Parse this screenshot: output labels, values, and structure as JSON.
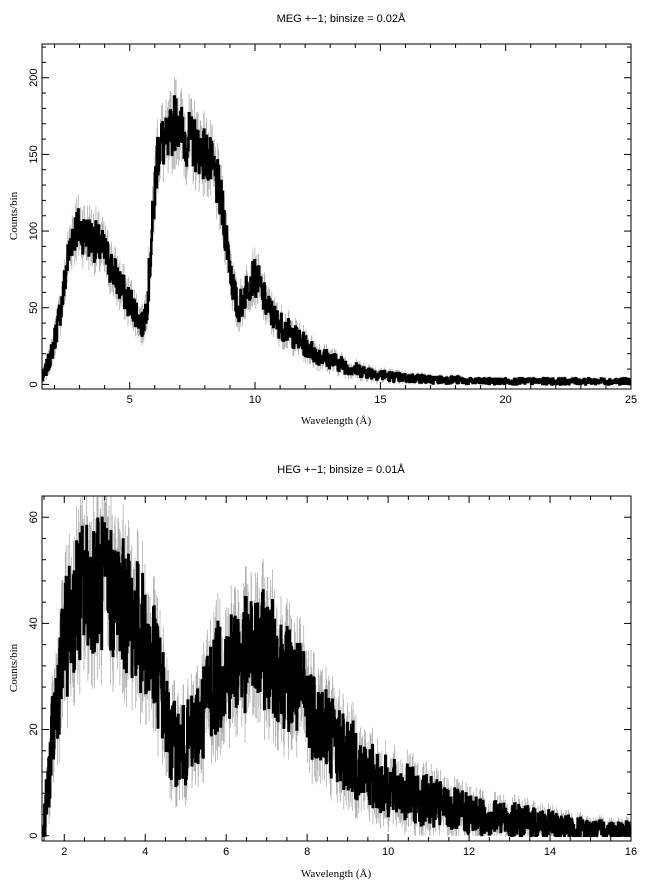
{
  "chart_data": [
    {
      "type": "line",
      "title": "MEG +−1; binsize = 0.02Å",
      "xlabel": "Wavelength (Å)",
      "ylabel": "Counts/bin",
      "xlim": [
        1.5,
        25
      ],
      "ylim": [
        -3,
        222
      ],
      "xticks": [
        5,
        10,
        15,
        20,
        25
      ],
      "yticks": [
        0,
        50,
        100,
        150,
        200
      ],
      "grid": false,
      "series": [
        {
          "style": "black stepped histogram with grey error bars",
          "x": [
            1.5,
            1.7,
            1.9,
            2.1,
            2.3,
            2.5,
            2.7,
            2.9,
            3.1,
            3.3,
            3.5,
            3.7,
            3.9,
            4.1,
            4.3,
            4.5,
            4.7,
            4.9,
            5.1,
            5.3,
            5.5,
            5.7,
            5.9,
            6.1,
            6.3,
            6.5,
            6.7,
            6.9,
            7.1,
            7.3,
            7.5,
            7.7,
            7.9,
            8.1,
            8.3,
            8.5,
            8.7,
            8.9,
            9.1,
            9.3,
            9.5,
            9.7,
            9.9,
            10.1,
            10.3,
            10.5,
            10.7,
            10.9,
            11.2,
            11.5,
            11.8,
            12.1,
            12.4,
            12.7,
            13.0,
            13.3,
            13.6,
            13.9,
            14.2,
            14.5,
            14.8,
            15.1,
            15.5,
            16.0,
            16.5,
            17.0,
            17.5,
            18.0,
            18.5,
            19.0,
            19.5,
            20.0,
            21.0,
            22.0,
            23.0,
            24.0,
            25.0
          ],
          "y": [
            3,
            12,
            22,
            38,
            55,
            80,
            98,
            102,
            100,
            97,
            95,
            92,
            88,
            82,
            75,
            68,
            62,
            55,
            52,
            45,
            38,
            55,
            105,
            152,
            158,
            155,
            168,
            175,
            162,
            160,
            158,
            155,
            152,
            148,
            140,
            130,
            112,
            90,
            65,
            48,
            55,
            65,
            70,
            68,
            58,
            50,
            45,
            40,
            36,
            32,
            28,
            24,
            20,
            18,
            16,
            14,
            12,
            10,
            9,
            8,
            7,
            6,
            5,
            4,
            4,
            3,
            3,
            3,
            2,
            2,
            2,
            2,
            2,
            2,
            2,
            2,
            2
          ]
        }
      ]
    },
    {
      "type": "line",
      "title": "HEG +−1; binsize = 0.01Å",
      "xlabel": "Wavelength (Å)",
      "ylabel": "Counts/bin",
      "xlim": [
        1.45,
        16
      ],
      "ylim": [
        -1,
        64
      ],
      "xticks": [
        2,
        4,
        6,
        8,
        10,
        12,
        14,
        16
      ],
      "yticks": [
        0,
        20,
        40,
        60
      ],
      "grid": false,
      "series": [
        {
          "style": "black stepped histogram with grey error bars",
          "x": [
            1.45,
            1.5,
            1.6,
            1.7,
            1.8,
            2.0,
            2.2,
            2.4,
            2.6,
            2.8,
            3.0,
            3.2,
            3.4,
            3.6,
            3.8,
            4.0,
            4.2,
            4.4,
            4.6,
            4.8,
            5.0,
            5.2,
            5.4,
            5.6,
            5.8,
            6.0,
            6.2,
            6.4,
            6.6,
            6.8,
            7.0,
            7.2,
            7.4,
            7.6,
            7.8,
            8.0,
            8.2,
            8.4,
            8.6,
            8.8,
            9.0,
            9.2,
            9.4,
            9.6,
            9.8,
            10.0,
            10.2,
            10.5,
            10.8,
            11.0,
            11.5,
            12.0,
            12.5,
            13.0,
            13.5,
            14.0,
            14.5,
            15.0,
            15.5,
            16.0
          ],
          "y": [
            0,
            2,
            10,
            18,
            26,
            36,
            42,
            46,
            47,
            48,
            47,
            46,
            44,
            42,
            40,
            37,
            33,
            28,
            18,
            17,
            17,
            19,
            23,
            28,
            30,
            32,
            33,
            34,
            34,
            35,
            35,
            33,
            31,
            29,
            27,
            25,
            23,
            21,
            19,
            17,
            15,
            14,
            12,
            11,
            10,
            9,
            8.5,
            8,
            7,
            6.5,
            5,
            4,
            3.5,
            3,
            2.5,
            2,
            1.5,
            1,
            1,
            1
          ]
        }
      ]
    }
  ]
}
